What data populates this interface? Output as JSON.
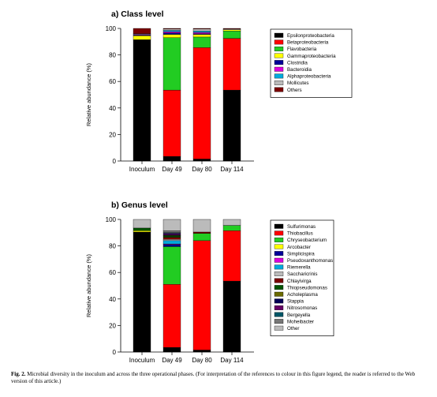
{
  "chart_data": [
    {
      "type": "bar",
      "stacked": true,
      "title": "a) Class level",
      "xlabel": "",
      "ylabel": "Relative abundance (%)",
      "ylim": [
        0,
        100
      ],
      "yticks": [
        "0",
        "20",
        "40",
        "60",
        "80",
        "100"
      ],
      "categories": [
        "Inoculum",
        "Day 49",
        "Day 80",
        "Day 114"
      ],
      "legend_position": "right",
      "grid": false,
      "series": [
        {
          "name": "Epsilonproteobacteria",
          "color": "#000000",
          "values": [
            91.5,
            3.5,
            1.5,
            53.5
          ]
        },
        {
          "name": "Betaproteobacteria",
          "color": "#ff0000",
          "values": [
            0,
            50,
            84,
            39
          ]
        },
        {
          "name": "Flavobacteria",
          "color": "#22cc22",
          "values": [
            0,
            39.5,
            8,
            5.5
          ]
        },
        {
          "name": "Gammaproteobacteria",
          "color": "#ffff00",
          "values": [
            3,
            2.5,
            2,
            1
          ]
        },
        {
          "name": "Clostridia",
          "color": "#000099",
          "values": [
            0.5,
            1,
            0.5,
            0
          ]
        },
        {
          "name": "Bacteroidia",
          "color": "#dd00dd",
          "values": [
            0.5,
            1,
            1,
            0
          ]
        },
        {
          "name": "Alphaproteobacteria",
          "color": "#00aadd",
          "values": [
            0,
            1,
            1,
            0
          ]
        },
        {
          "name": "Mollicutes",
          "color": "#bbbbbb",
          "values": [
            0.5,
            1,
            1.5,
            0.5
          ]
        },
        {
          "name": "Others",
          "color": "#7a0000",
          "values": [
            4,
            0.5,
            0.5,
            0.5
          ]
        }
      ]
    },
    {
      "type": "bar",
      "stacked": true,
      "title": "b) Genus level",
      "xlabel": "",
      "ylabel": "Relative abundance (%)",
      "ylim": [
        0,
        100
      ],
      "yticks": [
        "0",
        "20",
        "40",
        "60",
        "80",
        "100"
      ],
      "categories": [
        "Inoculum",
        "Day 49",
        "Day 80",
        "Day 114"
      ],
      "legend_position": "right",
      "grid": false,
      "series": [
        {
          "name": "Sulfurimonas",
          "color": "#000000",
          "values": [
            90.5,
            3.5,
            1.5,
            53.5
          ]
        },
        {
          "name": "Thiobacillus",
          "color": "#ff0000",
          "values": [
            0,
            47.5,
            82.5,
            38
          ]
        },
        {
          "name": "Chryseobacterium",
          "color": "#22cc22",
          "values": [
            0,
            28.5,
            5.5,
            4
          ]
        },
        {
          "name": "Arcobacter",
          "color": "#ffff00",
          "values": [
            1,
            0,
            0,
            0
          ]
        },
        {
          "name": "Simplicispira",
          "color": "#000099",
          "values": [
            0,
            1.5,
            0,
            0
          ]
        },
        {
          "name": "Pseudoxanthomonas",
          "color": "#dd00dd",
          "values": [
            0,
            0.5,
            0,
            0
          ]
        },
        {
          "name": "Riemerella",
          "color": "#00aadd",
          "values": [
            0,
            2.5,
            0,
            0
          ]
        },
        {
          "name": "Saccharicrinis",
          "color": "#bbbbbb",
          "values": [
            0,
            1,
            0,
            0
          ]
        },
        {
          "name": "Chlayivirga",
          "color": "#7a0000",
          "values": [
            0,
            1.5,
            1,
            0
          ]
        },
        {
          "name": "Thiopseudomonas",
          "color": "#005500",
          "values": [
            2,
            1,
            0,
            0
          ]
        },
        {
          "name": "Acholeplasma",
          "color": "#6b6b00",
          "values": [
            0,
            0.5,
            0,
            0
          ]
        },
        {
          "name": "Stappia",
          "color": "#000055",
          "values": [
            0,
            0.5,
            0,
            0
          ]
        },
        {
          "name": "Nitrosomonas",
          "color": "#660066",
          "values": [
            0,
            1,
            0,
            0
          ]
        },
        {
          "name": "Bergeyella",
          "color": "#005566",
          "values": [
            0,
            0.5,
            0,
            0
          ]
        },
        {
          "name": "Moheibacter",
          "color": "#777777",
          "values": [
            0,
            1.5,
            0,
            0
          ]
        },
        {
          "name": "Other",
          "color": "#bbbbbb",
          "values": [
            6.5,
            8.5,
            9.5,
            4.5
          ]
        }
      ]
    }
  ],
  "caption": {
    "label": "Fig. 2.",
    "text": " Microbial diversity in the inoculum and across the three operational phases. (For interpretation of the references to colour in this figure legend, the reader is referred to the Web version of this article.)"
  }
}
